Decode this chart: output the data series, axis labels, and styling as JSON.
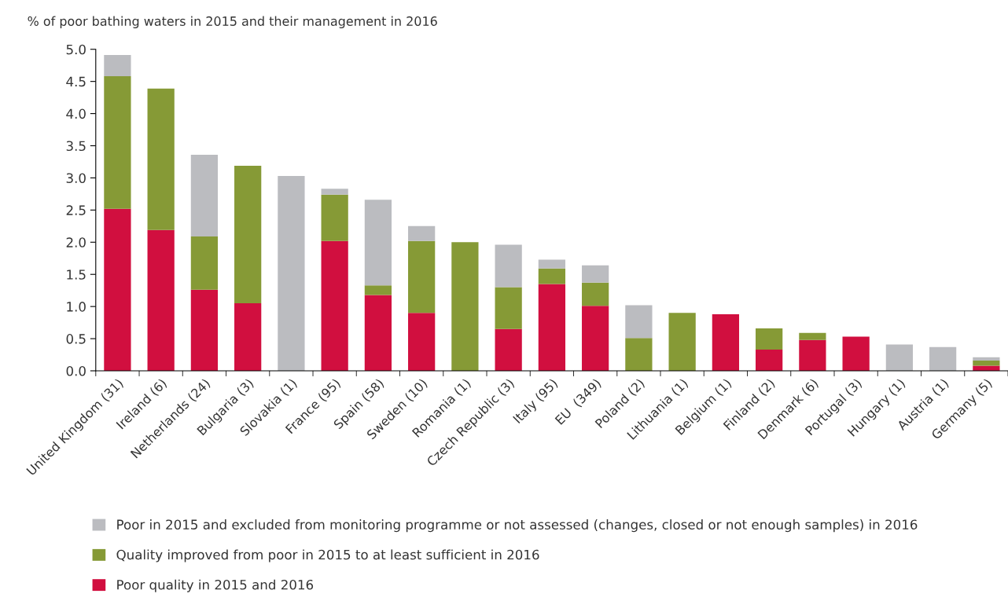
{
  "chart_data": {
    "type": "bar",
    "stacked": true,
    "ylabel": "% of poor bathing waters in 2015 and their management in 2016",
    "categories": [
      "United Kingdom (31)",
      "Ireland (6)",
      "Netherlands (24)",
      "Bulgaria (3)",
      "Slovakia (1)",
      "France (95)",
      "Spain (58)",
      "Sweden (10)",
      "Romania (1)",
      "Czech Republic (3)",
      "Italy (95)",
      "EU  (349)",
      "Poland (2)",
      "Lithuania (1)",
      "Belgium (1)",
      "Finland (2)",
      "Denmark (6)",
      "Portugal (3)",
      "Hungary (1)",
      "Austria (1)",
      "Germany (5)"
    ],
    "series": [
      {
        "name": "Poor quality in 2015 and 2016",
        "color": "#d10f3f",
        "values": [
          2.52,
          2.19,
          1.26,
          1.05,
          0,
          2.02,
          1.18,
          0.9,
          0,
          0.65,
          1.35,
          1.01,
          0,
          0,
          0.88,
          0.33,
          0.48,
          0.53,
          0,
          0,
          0.08
        ]
      },
      {
        "name": "Quality improved from poor in 2015 to at least sufficient in 2016",
        "color": "#869a36",
        "values": [
          2.06,
          2.2,
          0.83,
          2.14,
          0,
          0.72,
          0.15,
          1.12,
          2.0,
          0.65,
          0.24,
          0.36,
          0.51,
          0.9,
          0,
          0.33,
          0.11,
          0,
          0,
          0,
          0.08
        ]
      },
      {
        "name": "Poor in 2015 and excluded from monitoring programme or not assessed (changes, closed or not enough samples) in 2016",
        "color": "#bbbcc0",
        "values": [
          0.33,
          0,
          1.27,
          0,
          3.03,
          0.09,
          1.33,
          0.23,
          0,
          0.66,
          0.14,
          0.27,
          0.51,
          0,
          0,
          0,
          0,
          0,
          0.41,
          0.37,
          0.05
        ]
      }
    ],
    "ylim": [
      0.0,
      5.0
    ],
    "yticks": [
      {
        "value": 0,
        "label": "0.0"
      },
      0.5,
      {
        "value": 1,
        "label": "1.0"
      },
      1.5,
      {
        "value": 2,
        "label": "2.0"
      },
      2.5,
      {
        "value": 3,
        "label": "3.0"
      },
      3.5,
      {
        "value": 4,
        "label": "4.0"
      },
      4.5,
      {
        "value": 5,
        "label": "5.0"
      }
    ],
    "legend": "bottom"
  }
}
